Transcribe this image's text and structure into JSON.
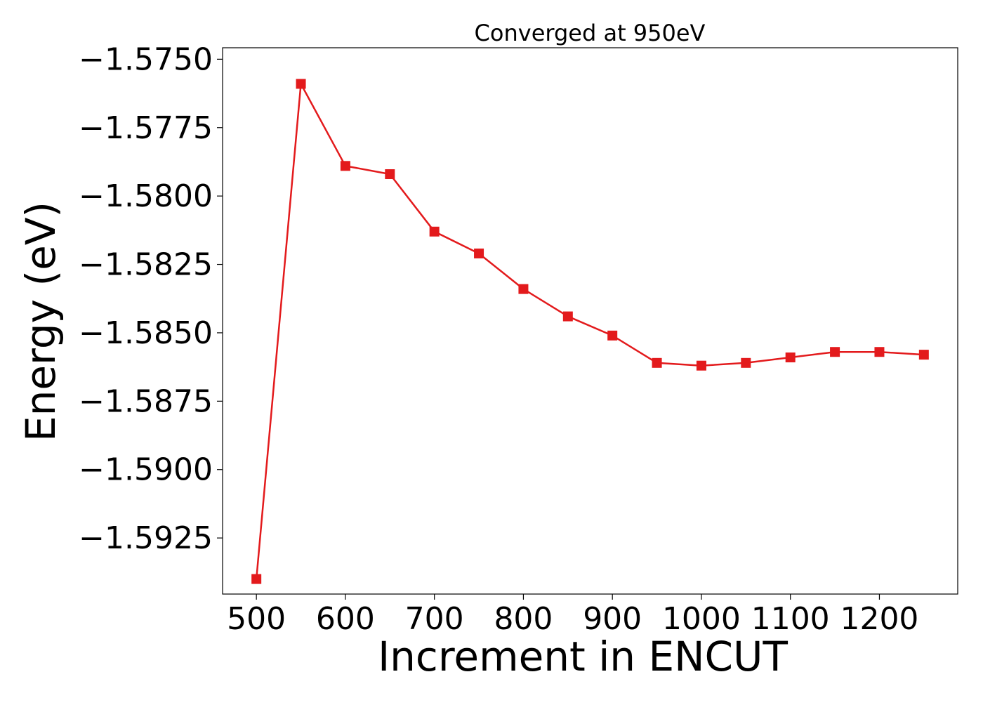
{
  "chart_data": {
    "type": "line",
    "title": "Converged at 950eV",
    "xlabel": "Increment in ENCUT",
    "ylabel": "Energy (eV)",
    "x": [
      500,
      550,
      600,
      650,
      700,
      750,
      800,
      850,
      900,
      950,
      1000,
      1050,
      1100,
      1150,
      1200,
      1250
    ],
    "series": [
      {
        "values": [
          -1.594,
          -1.5759,
          -1.5789,
          -1.5792,
          -1.5813,
          -1.5821,
          -1.5834,
          -1.5844,
          -1.5851,
          -1.5861,
          -1.5862,
          -1.5861,
          -1.5859,
          -1.5857,
          -1.5857,
          -1.5858
        ],
        "color": "#e31a1c",
        "marker": "square"
      }
    ],
    "xlim": [
      462,
      1288
    ],
    "ylim": [
      -1.59455,
      -1.57458
    ],
    "x_ticks": [
      500,
      600,
      700,
      800,
      900,
      1000,
      1100,
      1200
    ],
    "x_tick_labels": [
      "500",
      "600",
      "700",
      "800",
      "900",
      "1000",
      "1100",
      "1200"
    ],
    "y_ticks": [
      -1.575,
      -1.5775,
      -1.58,
      -1.5825,
      -1.585,
      -1.5875,
      -1.59,
      -1.5925
    ],
    "y_tick_labels": [
      "−1.5750",
      "−1.5775",
      "−1.5800",
      "−1.5825",
      "−1.5850",
      "−1.5875",
      "−1.5900",
      "−1.5925"
    ],
    "grid": false,
    "legend": "none"
  }
}
